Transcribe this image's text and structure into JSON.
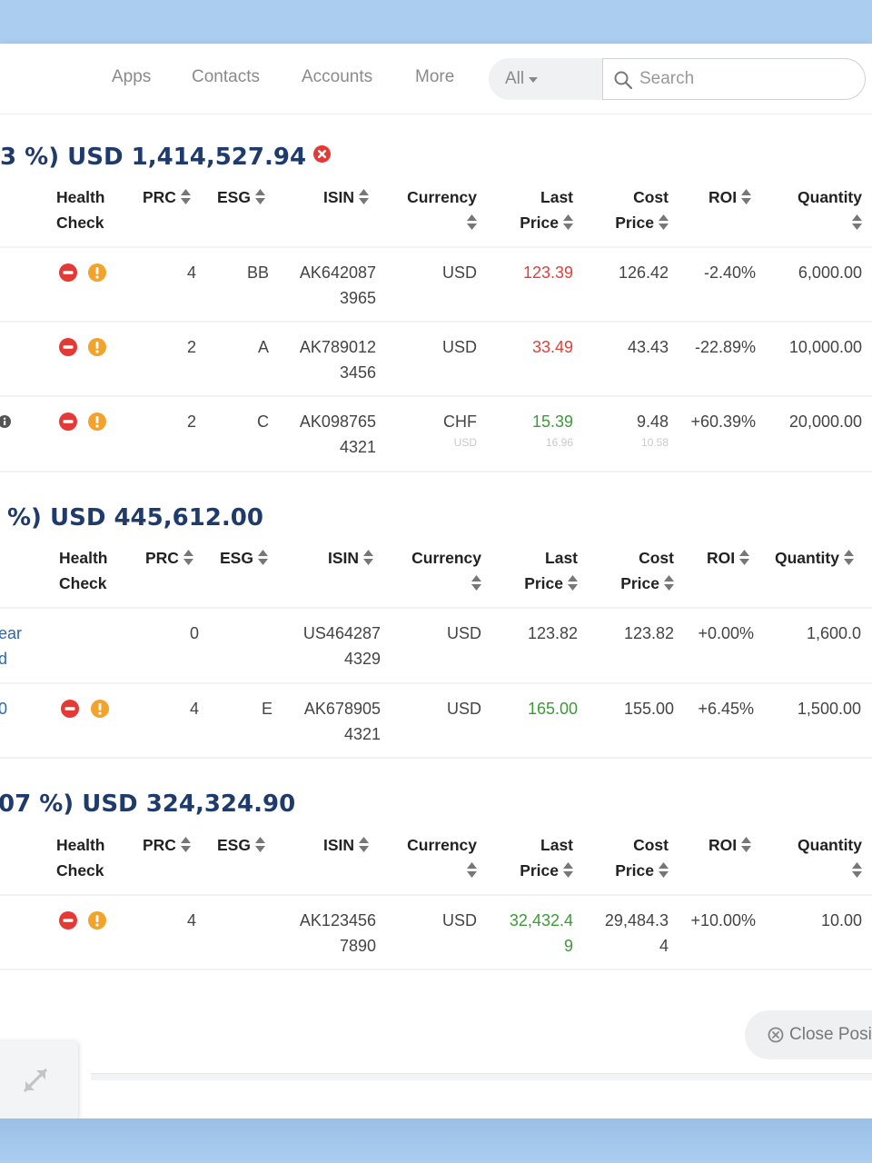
{
  "nav": {
    "items": [
      "Apps",
      "Contacts",
      "Accounts",
      "More"
    ]
  },
  "filter": {
    "label": "All"
  },
  "search": {
    "placeholder": "Search"
  },
  "sections": [
    {
      "title": "3 %) USD 1,414,527.94"
    },
    {
      "title": "%) USD 445,612.00"
    },
    {
      "title": "07 %) USD 324,324.90"
    }
  ],
  "headers": {
    "health": [
      "Health",
      "Check"
    ],
    "prc": "PRC",
    "esg": "ESG",
    "isin": "ISIN",
    "currency": "Currency",
    "last": [
      "Last",
      "Price"
    ],
    "cost": [
      "Cost",
      "Price"
    ],
    "roi": "ROI",
    "quantity": "Quantity"
  },
  "rows": {
    "s1r1": {
      "prc": "4",
      "esg": "BB",
      "isin": [
        "AK642087",
        "3965"
      ],
      "currency": "USD",
      "last": "123.39",
      "cost": "126.42",
      "roi": "-2.40%",
      "quantity": "6,000.00"
    },
    "s1r2": {
      "prc": "2",
      "esg": "A",
      "isin": [
        "AK789012",
        "3456"
      ],
      "currency": "USD",
      "last": "33.49",
      "cost": "43.43",
      "roi": "-22.89%",
      "quantity": "10,000.00"
    },
    "s1r3": {
      "prc": "2",
      "esg": "C",
      "isin": [
        "AK098765",
        "4321"
      ],
      "currency": "CHF",
      "currency_sub": "USD",
      "last": "15.39",
      "last_sub": "16.96",
      "cost": "9.48",
      "cost_sub": "10.58",
      "roi": "+60.39%",
      "quantity": "20,000.00"
    },
    "s2r1": {
      "name": [
        "ear",
        "d"
      ],
      "prc": "0",
      "isin": [
        "US464287",
        "4329"
      ],
      "currency": "USD",
      "last": "123.82",
      "cost": "123.82",
      "roi": "+0.00%",
      "quantity": "1,600.0"
    },
    "s2r2": {
      "name": "0",
      "prc": "4",
      "esg": "E",
      "isin": [
        "AK678905",
        "4321"
      ],
      "currency": "USD",
      "last": "165.00",
      "cost": "155.00",
      "roi": "+6.45%",
      "quantity": "1,500.00"
    },
    "s3r1": {
      "prc": "4",
      "isin": [
        "AK123456",
        "7890"
      ],
      "currency": "USD",
      "last": [
        "32,432.4",
        "9"
      ],
      "cost": [
        "29,484.3",
        "4"
      ],
      "roi": "+10.00%",
      "quantity": "10.00"
    }
  },
  "footer": {
    "close_label": "Close Posit"
  },
  "colors": {
    "title": "#1e3b6c",
    "negative": "#e0403a",
    "positive": "#3c9a37",
    "warning": "#f2a32c",
    "background": "#aacdf0"
  }
}
